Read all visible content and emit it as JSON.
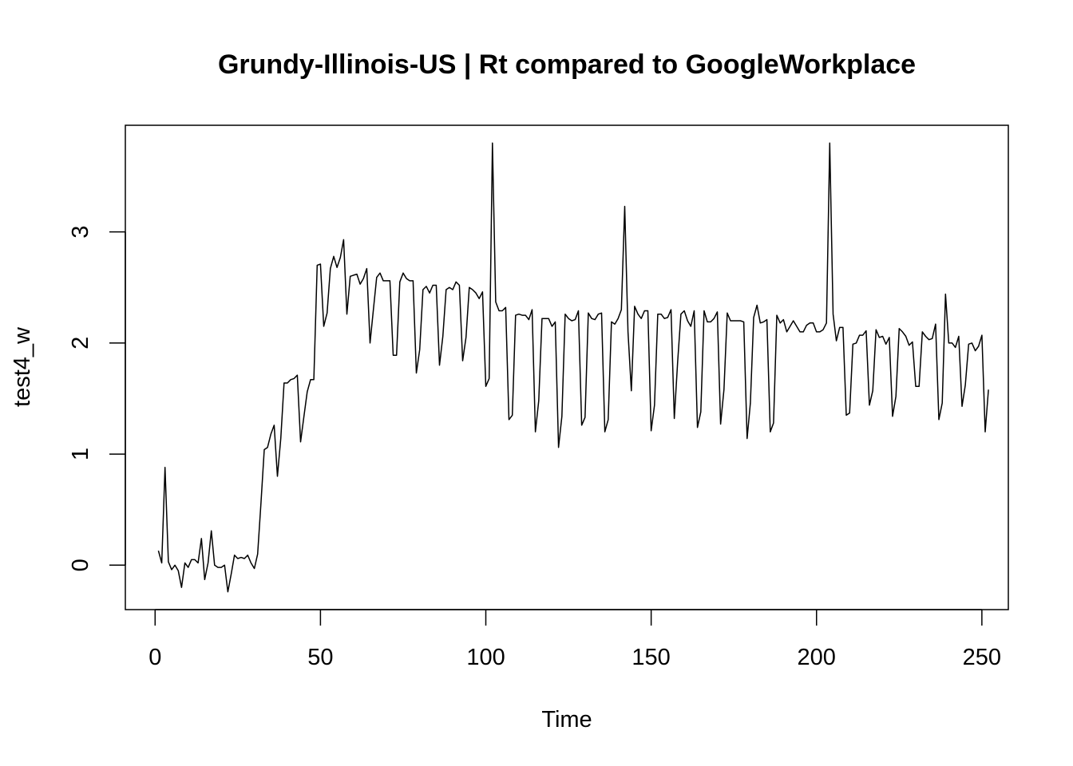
{
  "chart_data": {
    "type": "line",
    "title": "Grundy-Illinois-US | Rt compared to GoogleWorkplace",
    "xlabel": "Time",
    "ylabel": "test4_w",
    "xlim": [
      -9,
      258
    ],
    "ylim": [
      -0.4,
      3.96
    ],
    "x_ticks": [
      0,
      50,
      100,
      150,
      200,
      250
    ],
    "y_ticks": [
      0,
      1,
      2,
      3
    ],
    "grid": false,
    "legend": "none",
    "line_color": "#000000",
    "series": [
      {
        "x_start": 1,
        "values": [
          0.13,
          0.02,
          0.88,
          0.03,
          -0.04,
          0.0,
          -0.05,
          -0.2,
          0.02,
          -0.02,
          0.05,
          0.05,
          0.02,
          0.24,
          -0.13,
          0.02,
          0.31,
          0.0,
          -0.02,
          -0.02,
          0.0,
          -0.24,
          -0.08,
          0.09,
          0.06,
          0.07,
          0.06,
          0.09,
          0.02,
          -0.03,
          0.1,
          0.55,
          1.04,
          1.06,
          1.18,
          1.26,
          0.8,
          1.14,
          1.64,
          1.64,
          1.67,
          1.68,
          1.71,
          1.11,
          1.34,
          1.56,
          1.67,
          1.67,
          2.7,
          2.71,
          2.15,
          2.27,
          2.67,
          2.78,
          2.68,
          2.77,
          2.93,
          2.26,
          2.6,
          2.61,
          2.62,
          2.53,
          2.58,
          2.67,
          2.0,
          2.3,
          2.59,
          2.63,
          2.56,
          2.56,
          2.56,
          1.89,
          1.89,
          2.55,
          2.63,
          2.58,
          2.56,
          2.56,
          1.73,
          1.94,
          2.48,
          2.51,
          2.45,
          2.52,
          2.52,
          1.8,
          2.06,
          2.48,
          2.5,
          2.48,
          2.55,
          2.52,
          1.84,
          2.05,
          2.5,
          2.48,
          2.45,
          2.4,
          2.46,
          1.61,
          1.68,
          3.8,
          2.37,
          2.29,
          2.29,
          2.32,
          1.31,
          1.35,
          2.25,
          2.26,
          2.25,
          2.25,
          2.21,
          2.3,
          1.2,
          1.48,
          2.22,
          2.22,
          2.22,
          2.15,
          2.19,
          1.06,
          1.34,
          2.26,
          2.22,
          2.2,
          2.21,
          2.29,
          1.26,
          1.33,
          2.27,
          2.22,
          2.21,
          2.26,
          2.27,
          1.2,
          1.31,
          2.19,
          2.17,
          2.22,
          2.3,
          3.23,
          2.1,
          1.57,
          2.33,
          2.26,
          2.22,
          2.29,
          2.29,
          1.21,
          1.44,
          2.26,
          2.26,
          2.22,
          2.23,
          2.3,
          1.32,
          1.83,
          2.26,
          2.29,
          2.2,
          2.15,
          2.29,
          1.24,
          1.38,
          2.29,
          2.19,
          2.19,
          2.22,
          2.28,
          1.27,
          1.58,
          2.27,
          2.2,
          2.2,
          2.2,
          2.2,
          2.19,
          1.14,
          1.46,
          2.23,
          2.34,
          2.18,
          2.19,
          2.21,
          1.2,
          1.28,
          2.25,
          2.18,
          2.21,
          2.1,
          2.15,
          2.2,
          2.15,
          2.1,
          2.1,
          2.16,
          2.18,
          2.18,
          2.1,
          2.1,
          2.12,
          2.18,
          3.8,
          2.26,
          2.02,
          2.14,
          2.14,
          1.35,
          1.37,
          1.99,
          2.0,
          2.07,
          2.07,
          2.11,
          1.44,
          1.57,
          2.12,
          2.05,
          2.06,
          1.99,
          2.05,
          1.34,
          1.52,
          2.13,
          2.1,
          2.06,
          1.98,
          2.01,
          1.61,
          1.61,
          2.1,
          2.06,
          2.03,
          2.04,
          2.17,
          1.31,
          1.46,
          2.44,
          2.0,
          2.0,
          1.96,
          2.06,
          1.43,
          1.62,
          1.99,
          2.0,
          1.93,
          1.97,
          2.07,
          1.2,
          1.58
        ]
      }
    ]
  }
}
